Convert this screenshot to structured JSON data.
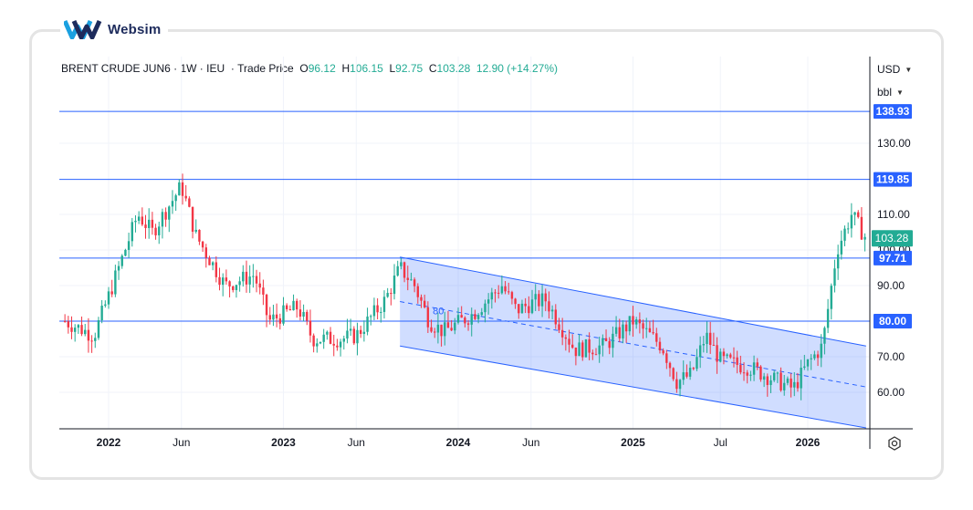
{
  "brand": {
    "name": "Websim"
  },
  "header": {
    "symbol": "BRENT CRUDE JUN6",
    "sep1": " · ",
    "interval": "1W",
    "sep2": " · ",
    "exchange": "IEU",
    "sep3": "  · ",
    "price_type": "Trade Price",
    "o_label": "  O",
    "o_value": "96.12",
    "h_label": "  H",
    "h_value": "106.15",
    "l_label": "  L",
    "l_value": "92.75",
    "c_label": "  C",
    "c_value": "103.28",
    "change": "  12.90 (+14.27%)"
  },
  "controls": {
    "currency": "USD",
    "unit": "bbl"
  },
  "chart_data": {
    "type": "candlestick",
    "x_axis_labels": [
      "2022",
      "Jun",
      "2023",
      "Jun",
      "2024",
      "Jun",
      "2025",
      "Jul",
      "2026"
    ],
    "y_axis_ticks": [
      60,
      70,
      80,
      90,
      100,
      110,
      130
    ],
    "y_axis_tick_labels": [
      "60.00",
      "70.00",
      "80.00",
      "90.00",
      "100.00",
      "110.00",
      "130.00"
    ],
    "y_range": [
      50,
      145
    ],
    "last_price": {
      "value": 103.28,
      "label": "103.28",
      "color": "#22ab94"
    },
    "horizontal_lines": [
      {
        "value": 138.93,
        "label": "138.93"
      },
      {
        "value": 119.85,
        "label": "119.85"
      },
      {
        "value": 97.71,
        "label": "97.71"
      },
      {
        "value": 80.0,
        "label": "80.00"
      }
    ],
    "channel": {
      "upper": [
        [
          "2023-09",
          98.0
        ],
        [
          "2026-05",
          73.0
        ]
      ],
      "lower": [
        [
          "2023-09",
          73.0
        ],
        [
          "2026-05",
          50.0
        ]
      ],
      "midline_label": "80"
    },
    "approx_weekly_path": [
      [
        "2021-10",
        80
      ],
      [
        "2021-12",
        76
      ],
      [
        "2022-01",
        87
      ],
      [
        "2022-03",
        110
      ],
      [
        "2022-04",
        105
      ],
      [
        "2022-06",
        118
      ],
      [
        "2022-07",
        104
      ],
      [
        "2022-09",
        90
      ],
      [
        "2022-11",
        93
      ],
      [
        "2022-12",
        80
      ],
      [
        "2023-02",
        84
      ],
      [
        "2023-03",
        75
      ],
      [
        "2023-05",
        75
      ],
      [
        "2023-06",
        76
      ],
      [
        "2023-08",
        86
      ],
      [
        "2023-09",
        95
      ],
      [
        "2023-10",
        90
      ],
      [
        "2023-11",
        80
      ],
      [
        "2023-12",
        77
      ],
      [
        "2024-02",
        82
      ],
      [
        "2024-04",
        90
      ],
      [
        "2024-05",
        83
      ],
      [
        "2024-06",
        85
      ],
      [
        "2024-07",
        86
      ],
      [
        "2024-09",
        72
      ],
      [
        "2024-11",
        73
      ],
      [
        "2025-01",
        80
      ],
      [
        "2025-03",
        73
      ],
      [
        "2025-04",
        63
      ],
      [
        "2025-05",
        65
      ],
      [
        "2025-06",
        76
      ],
      [
        "2025-07",
        69
      ],
      [
        "2025-09",
        67
      ],
      [
        "2025-11",
        63
      ],
      [
        "2025-12",
        61
      ],
      [
        "2026-01",
        68
      ],
      [
        "2026-02",
        73
      ],
      [
        "2026-03",
        100
      ],
      [
        "2026-04",
        110
      ],
      [
        "2026-05",
        103.28
      ]
    ],
    "colors": {
      "up": "#22ab94",
      "down": "#f23645",
      "line": "#2962ff"
    }
  }
}
